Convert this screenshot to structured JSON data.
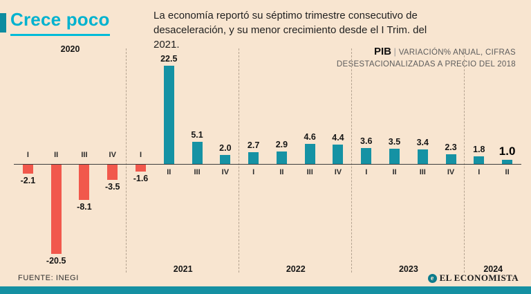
{
  "header": {
    "title": "Crece poco",
    "subtitle_line1": "La economía reportó su séptimo trimestre consecutivo de",
    "subtitle_line2": "desaceleración, y su menor crecimiento desde el I Trim. del 2021.",
    "legend_bold": "PIB",
    "legend_pipe": "|",
    "legend_line1": "VARIACIÓN% ANUAL, CIFRAS",
    "legend_line2": "DESESTACIONALIZADAS A PRECIO DEL 2018"
  },
  "footer": {
    "source": "FUENTE: INEGI",
    "brand_initial": "e",
    "brand": "EL ECONOMISTA"
  },
  "colors": {
    "background": "#f8e5d0",
    "positive_bar": "#1592a4",
    "negative_bar": "#f1584c",
    "title_accent": "#00b2cf",
    "bottom_strip": "#1590a2"
  },
  "chart_data": {
    "type": "bar",
    "title": "Crece poco",
    "ylabel": "PIB | Variación % anual, cifras desestacionalizadas a precio del 2018",
    "unit": "%",
    "groups": [
      {
        "year": "2020",
        "year_label_position": "top",
        "quarters": [
          "I",
          "II",
          "III",
          "IV"
        ],
        "values": [
          -2.1,
          -20.5,
          -8.1,
          -3.5
        ]
      },
      {
        "year": "2021",
        "year_label_position": "bottom",
        "quarters": [
          "I",
          "II",
          "III",
          "IV"
        ],
        "values": [
          -1.6,
          22.5,
          5.1,
          2.0
        ]
      },
      {
        "year": "2022",
        "year_label_position": "bottom",
        "quarters": [
          "I",
          "II",
          "III",
          "IV"
        ],
        "values": [
          2.7,
          2.9,
          4.6,
          4.4
        ]
      },
      {
        "year": "2023",
        "year_label_position": "bottom",
        "quarters": [
          "I",
          "II",
          "III",
          "IV"
        ],
        "values": [
          3.6,
          3.5,
          3.4,
          2.3
        ]
      },
      {
        "year": "2024",
        "year_label_position": "bottom",
        "quarters": [
          "I",
          "II"
        ],
        "values": [
          1.8,
          1.0
        ]
      }
    ],
    "highlight": {
      "group": 4,
      "index": 1
    },
    "ylim": [
      -22,
      24
    ],
    "grid": "dashed-vertical-separators-between-years"
  }
}
